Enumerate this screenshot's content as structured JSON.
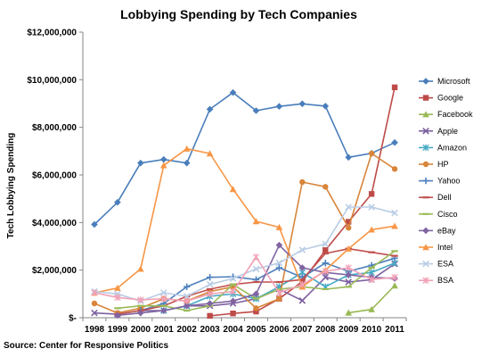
{
  "chart_data": {
    "type": "line",
    "title": "Lobbying Spending by Tech Companies",
    "ylabel": "Tech Lobbying Spending",
    "xlabel": "",
    "source": "Source: Center for Responsive Politics",
    "x": [
      1998,
      1999,
      2000,
      2001,
      2002,
      2003,
      2004,
      2005,
      2006,
      2007,
      2008,
      2009,
      2010,
      2011
    ],
    "x_tick_labels": [
      "1998",
      "1999",
      "2000",
      "2001",
      "2002",
      "2003",
      "2004",
      "2005",
      "2006",
      "2007",
      "2008",
      "2009",
      "2010",
      "2011"
    ],
    "ylim": [
      0,
      12000000
    ],
    "y_ticks": [
      0,
      2000000,
      4000000,
      6000000,
      8000000,
      10000000,
      12000000
    ],
    "y_tick_labels": [
      "$-",
      "$2,000,000",
      "$4,000,000",
      "$6,000,000",
      "$8,000,000",
      "$10,000,000",
      "$12,000,000"
    ],
    "legend_position": "right",
    "grid": false,
    "series": [
      {
        "name": "Microsoft",
        "color": "#4a7ebb",
        "marker": "diamond",
        "values": [
          3920000,
          4850000,
          6500000,
          6650000,
          6500000,
          8760000,
          9460000,
          8700000,
          8880000,
          8990000,
          8890000,
          6740000,
          6910000,
          7360000
        ]
      },
      {
        "name": "Google",
        "color": "#be4b48",
        "marker": "square",
        "values": [
          null,
          null,
          null,
          null,
          null,
          80000,
          180000,
          260000,
          800000,
          1520000,
          2840000,
          4030000,
          5200000,
          9680000
        ]
      },
      {
        "name": "Facebook",
        "color": "#98b954",
        "marker": "triangle",
        "values": [
          null,
          null,
          null,
          null,
          null,
          null,
          null,
          null,
          null,
          null,
          null,
          210000,
          350000,
          1350000
        ]
      },
      {
        "name": "Apple",
        "color": "#7d60a0",
        "marker": "x",
        "values": [
          200000,
          150000,
          300000,
          300000,
          500000,
          500000,
          600000,
          800000,
          1200000,
          720000,
          1700000,
          1500000,
          1600000,
          2260000
        ]
      },
      {
        "name": "Amazon",
        "color": "#46aac4",
        "marker": "asterisk",
        "values": [
          null,
          null,
          null,
          300000,
          500000,
          900000,
          1000000,
          800000,
          1300000,
          1900000,
          1300000,
          1800000,
          1900000,
          2300000
        ]
      },
      {
        "name": "HP",
        "color": "#d8853b",
        "marker": "circle",
        "values": [
          600000,
          200000,
          400000,
          800000,
          700000,
          1100000,
          1300000,
          400000,
          800000,
          5700000,
          5500000,
          3780000,
          6900000,
          6250000
        ]
      },
      {
        "name": "Yahoo",
        "color": "#4f81bd",
        "marker": "plus",
        "values": [
          null,
          null,
          300000,
          600000,
          1300000,
          1700000,
          1720000,
          1600000,
          2100000,
          1700000,
          2300000,
          1950000,
          2200000,
          2500000
        ]
      },
      {
        "name": "Dell",
        "color": "#c0504d",
        "marker": "dash",
        "values": [
          null,
          150000,
          300000,
          500000,
          900000,
          1200000,
          1400000,
          1500000,
          1500000,
          1600000,
          2700000,
          2900000,
          2750000,
          2600000
        ]
      },
      {
        "name": "Cisco",
        "color": "#9bbb59",
        "marker": "dash",
        "values": [
          null,
          400000,
          500000,
          500000,
          300000,
          500000,
          1400000,
          800000,
          1200000,
          1300000,
          1200000,
          1300000,
          2100000,
          2800000
        ]
      },
      {
        "name": "eBay",
        "color": "#8064a2",
        "marker": "diamond",
        "values": [
          null,
          100000,
          200000,
          300000,
          500000,
          600000,
          700000,
          1000000,
          3050000,
          2100000,
          1900000,
          1800000,
          1700000,
          1650000
        ]
      },
      {
        "name": "Intel",
        "color": "#f79646",
        "marker": "triangle",
        "values": [
          1050000,
          1250000,
          2050000,
          6400000,
          7100000,
          6900000,
          5400000,
          4050000,
          3800000,
          1300000,
          2000000,
          2900000,
          3700000,
          3850000
        ]
      },
      {
        "name": "ESA",
        "color": "#b9cde5",
        "marker": "x",
        "values": [
          1100000,
          1000000,
          700000,
          1050000,
          900000,
          1400000,
          1650000,
          2050000,
          2300000,
          2850000,
          3100000,
          4650000,
          4650000,
          4400000
        ]
      },
      {
        "name": "BSA",
        "color": "#f2a1b6",
        "marker": "asterisk",
        "values": [
          1050000,
          850000,
          750000,
          800000,
          700000,
          1000000,
          1100000,
          2550000,
          1050000,
          1400000,
          1950000,
          2100000,
          1600000,
          1700000
        ]
      }
    ]
  }
}
